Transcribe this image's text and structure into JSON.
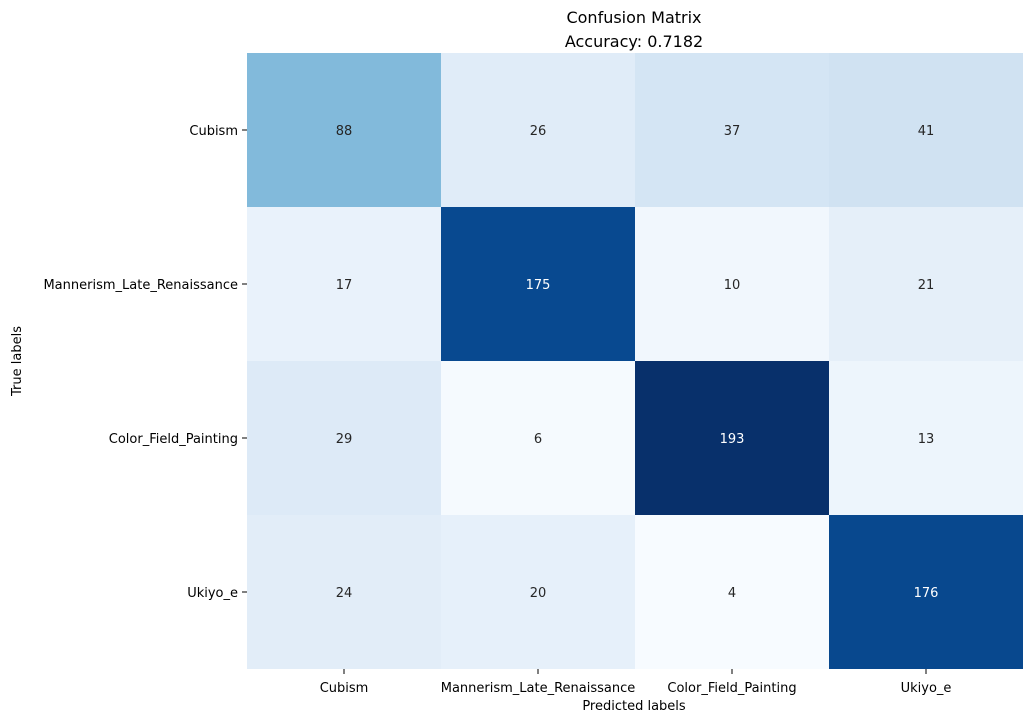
{
  "chart_data": {
    "type": "heatmap",
    "title": "Confusion Matrix",
    "subtitle": "Accuracy: 0.7182",
    "xlabel": "Predicted labels",
    "ylabel": "True labels",
    "x_categories": [
      "Cubism",
      "Mannerism_Late_Renaissance",
      "Color_Field_Painting",
      "Ukiyo_e"
    ],
    "y_categories": [
      "Cubism",
      "Mannerism_Late_Renaissance",
      "Color_Field_Painting",
      "Ukiyo_e"
    ],
    "values": [
      [
        88,
        26,
        37,
        41
      ],
      [
        17,
        175,
        10,
        21
      ],
      [
        29,
        6,
        193,
        13
      ],
      [
        24,
        20,
        4,
        176
      ]
    ],
    "colormap": "Blues",
    "vmin": 4,
    "vmax": 193,
    "colorbar": false,
    "grid": false
  }
}
